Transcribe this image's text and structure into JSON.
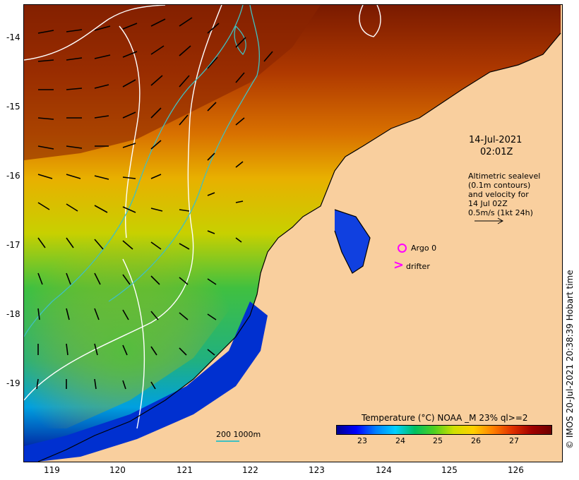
{
  "map": {
    "date": "14-Jul-2021",
    "time": "02:01Z",
    "legend_lines": [
      "Altimetric sealevel",
      "(0.1m contours)",
      "and velocity for",
      "14 Jul 02Z",
      "0.5m/s (1kt 24h)"
    ],
    "argo_label": "Argo 0",
    "drifter_label": "drifter",
    "drifter_symbol": ">",
    "scale_label": "200  1000m",
    "colorbar_title": "Temperature (°C) NOAA _M 23% ql>=2",
    "colorbar_ticks": [
      "23",
      "24",
      "25",
      "26",
      "27"
    ],
    "lat_ticks": [
      "-14",
      "-15",
      "-16",
      "-17",
      "-18",
      "-19"
    ],
    "lon_ticks": [
      "119",
      "120",
      "121",
      "122",
      "123",
      "124",
      "125",
      "126"
    ],
    "copyright": "© IMOS 20-Jul-2021 20:38:39 Hobart time",
    "colors": {
      "land": "#f9cf9e",
      "marker": "#ff00ff",
      "bathymetry": "#40c0c0",
      "sealevel_contour": "#ffffff"
    }
  }
}
